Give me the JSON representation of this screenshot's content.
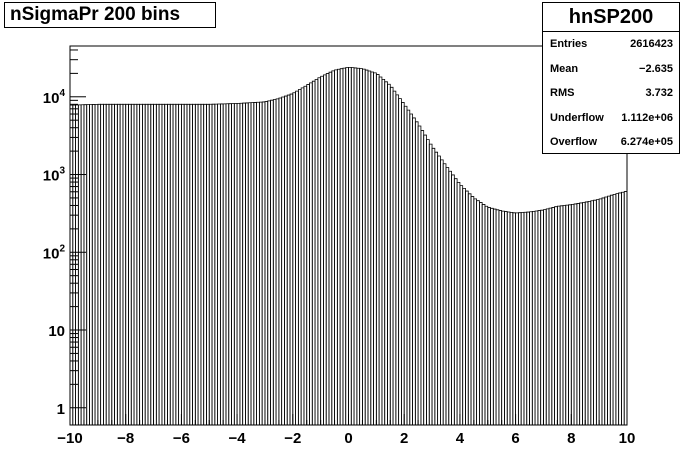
{
  "title": "nSigmaPr 200 bins",
  "stats": {
    "name": "hnSP200",
    "rows": [
      {
        "label": "Entries",
        "value": "2616423"
      },
      {
        "label": "Mean",
        "value": "−2.635"
      },
      {
        "label": "RMS",
        "value": "3.732"
      },
      {
        "label": "Underflow",
        "value": "1.112e+06"
      },
      {
        "label": "Overflow",
        "value": "6.274e+05"
      }
    ]
  },
  "chart_data": {
    "type": "bar",
    "histogram": true,
    "nbins": 200,
    "xlim": [
      -10,
      10
    ],
    "yscale": "log",
    "ylim": [
      0.6,
      45000
    ],
    "x_ticks": [
      "−10",
      "−8",
      "−6",
      "−4",
      "−2",
      "0",
      "2",
      "4",
      "6",
      "8",
      "10"
    ],
    "y_ticks": [
      {
        "value": 1,
        "base": "1",
        "exp": ""
      },
      {
        "value": 10,
        "base": "10",
        "exp": ""
      },
      {
        "value": 100,
        "base": "10",
        "exp": "2"
      },
      {
        "value": 1000,
        "base": "10",
        "exp": "3"
      },
      {
        "value": 10000,
        "base": "10",
        "exp": "4"
      }
    ],
    "bar_color": "#000000",
    "fill": "none",
    "grid": false,
    "control_points": [
      [
        -10,
        7800
      ],
      [
        -9,
        8000
      ],
      [
        -8,
        8000
      ],
      [
        -7,
        8000
      ],
      [
        -6,
        8000
      ],
      [
        -5,
        8000
      ],
      [
        -4,
        8200
      ],
      [
        -3,
        8600
      ],
      [
        -2.5,
        9500
      ],
      [
        -2,
        11000
      ],
      [
        -1.5,
        14000
      ],
      [
        -1,
        18000
      ],
      [
        -0.5,
        22000
      ],
      [
        0,
        24000
      ],
      [
        0.5,
        23000
      ],
      [
        1,
        20000
      ],
      [
        1.5,
        14000
      ],
      [
        2,
        8000
      ],
      [
        2.5,
        4500
      ],
      [
        3,
        2300
      ],
      [
        3.5,
        1300
      ],
      [
        4,
        750
      ],
      [
        4.5,
        500
      ],
      [
        5,
        380
      ],
      [
        5.5,
        340
      ],
      [
        6,
        320
      ],
      [
        6.5,
        330
      ],
      [
        7,
        350
      ],
      [
        7.5,
        390
      ],
      [
        8,
        410
      ],
      [
        8.5,
        440
      ],
      [
        9,
        480
      ],
      [
        9.5,
        550
      ],
      [
        10,
        610
      ]
    ]
  }
}
